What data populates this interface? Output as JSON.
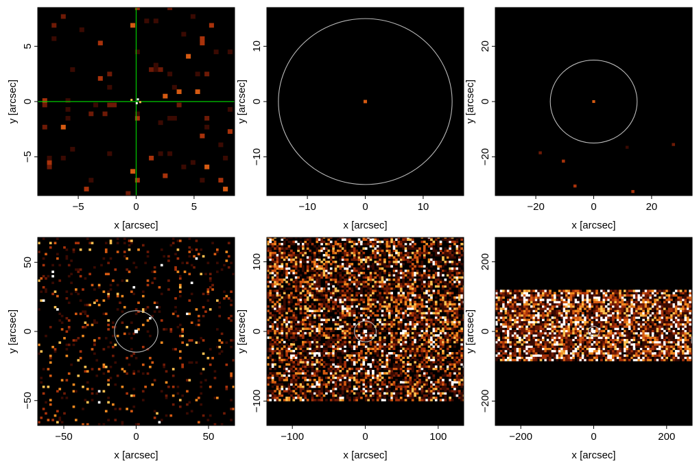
{
  "figure": {
    "background": "#000000",
    "colormap": [
      "#000000",
      "#3a0a02",
      "#6e1a06",
      "#a8320b",
      "#d55a12",
      "#f08a20",
      "#fbc050",
      "#ffffff"
    ]
  },
  "chart_data": [
    {
      "type": "heatmap",
      "id": "panel-1",
      "xlabel": "x [arcsec]",
      "ylabel": "y [arcsec]",
      "xlim": [
        -8.5,
        8.5
      ],
      "ylim": [
        -8.5,
        8.5
      ],
      "xticks": [
        -5,
        0,
        5
      ],
      "yticks": [
        -5,
        0,
        5
      ],
      "crosshair": {
        "x": 0,
        "y": 0,
        "color": "#00cc00"
      },
      "circle": null,
      "source": {
        "x": 0,
        "y": 0,
        "size": 0.3
      },
      "noise": {
        "density": 0.04,
        "intensity": 0.06,
        "pixel": 0.4,
        "band": null
      }
    },
    {
      "type": "heatmap",
      "id": "panel-2",
      "xlabel": "x [arcsec]",
      "ylabel": "y [arcsec]",
      "xlim": [
        -17,
        17
      ],
      "ylim": [
        -17,
        17
      ],
      "xticks": [
        -10,
        0,
        10
      ],
      "yticks": [
        -10,
        0,
        10
      ],
      "crosshair": null,
      "circle": {
        "x": 0,
        "y": 0,
        "radius": 15,
        "color": "#bbbbbb"
      },
      "source": {
        "x": 0,
        "y": 0,
        "size": 0.6
      },
      "noise": {
        "density": 0.0,
        "intensity": 0.0,
        "pixel": 0.5,
        "band": null
      }
    },
    {
      "type": "heatmap",
      "id": "panel-3",
      "xlabel": "x [arcsec]",
      "ylabel": "y [arcsec]",
      "xlim": [
        -34,
        34
      ],
      "ylim": [
        -34,
        34
      ],
      "xticks": [
        -20,
        0,
        20
      ],
      "yticks": [
        -20,
        0,
        20
      ],
      "crosshair": null,
      "circle": {
        "x": 0,
        "y": 0,
        "radius": 15,
        "color": "#bbbbbb"
      },
      "source": {
        "x": 0,
        "y": 0,
        "size": 1.0
      },
      "noise": {
        "density": 0.002,
        "intensity": 0.15,
        "pixel": 1.0,
        "band": null
      }
    },
    {
      "type": "heatmap",
      "id": "panel-4",
      "xlabel": "x [arcsec]",
      "ylabel": "y [arcsec]",
      "xlim": [
        -68,
        68
      ],
      "ylim": [
        -68,
        68
      ],
      "xticks": [
        -50,
        0,
        50
      ],
      "yticks": [
        -50,
        0,
        50
      ],
      "crosshair": null,
      "circle": {
        "x": 0,
        "y": 0,
        "radius": 15,
        "color": "#bbbbbb"
      },
      "source": {
        "x": 0,
        "y": 0,
        "size": 2.5
      },
      "noise": {
        "density": 0.08,
        "intensity": 0.4,
        "pixel": 1.6,
        "band": null
      }
    },
    {
      "type": "heatmap",
      "id": "panel-5",
      "xlabel": "x [arcsec]",
      "ylabel": "y [arcsec]",
      "xlim": [
        -135,
        135
      ],
      "ylim": [
        -135,
        135
      ],
      "xticks": [
        -100,
        0,
        100
      ],
      "yticks": [
        -100,
        0,
        100
      ],
      "crosshair": null,
      "circle": {
        "x": 0,
        "y": 0,
        "radius": 15,
        "color": "#bbbbbb"
      },
      "source": {
        "x": 0,
        "y": 0,
        "size": 5
      },
      "noise": {
        "density": 0.6,
        "intensity": 0.55,
        "pixel": 3.2,
        "band": [
          -100,
          135
        ]
      }
    },
    {
      "type": "heatmap",
      "id": "panel-6",
      "xlabel": "x [arcsec]",
      "ylabel": "y [arcsec]",
      "xlim": [
        -270,
        270
      ],
      "ylim": [
        -270,
        270
      ],
      "xticks": [
        -200,
        0,
        200
      ],
      "yticks": [
        -200,
        0,
        200
      ],
      "crosshair": null,
      "circle": {
        "x": 0,
        "y": 0,
        "radius": 15,
        "color": "#bbbbbb"
      },
      "source": {
        "x": 0,
        "y": 0,
        "size": 10
      },
      "noise": {
        "density": 0.85,
        "intensity": 0.75,
        "pixel": 6.4,
        "band": [
          -85,
          115
        ]
      }
    }
  ]
}
